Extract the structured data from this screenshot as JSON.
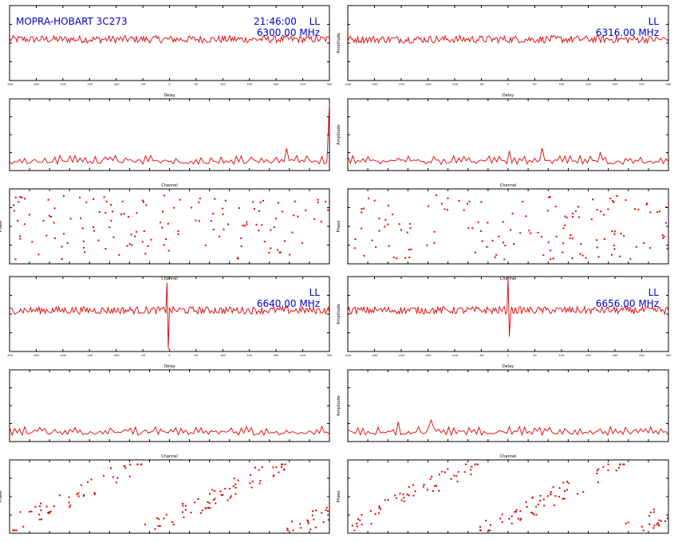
{
  "header": {
    "source": "MOPRA-HOBART 3C273",
    "time": "21:46:00",
    "pol": "LL"
  },
  "axis_labels": {
    "delay": "Delay",
    "channel": "Channel",
    "amplitude": "Amplitude",
    "phase": "Phase"
  },
  "colors": {
    "trace": "#dd0000",
    "annotation": "#0000cc"
  },
  "chart_data": [
    {
      "band": "6300.00 MHz",
      "freq_label": "6300.00 MHz",
      "pol_label": "LL",
      "time_label": "21:46:00",
      "delay": {
        "type": "line",
        "xlabel": "Delay",
        "ylabel": "",
        "x_ticks": [
          -300,
          -250,
          -200,
          -150,
          -100,
          -50,
          0,
          50,
          100,
          150,
          200,
          250,
          300
        ],
        "baseline": 0.55,
        "noise": 0.05,
        "spike": null
      },
      "amplitude": {
        "type": "line",
        "xlabel": "Channel",
        "ylabel": "",
        "n_channels": 128,
        "ylim": [
          0,
          8
        ],
        "peaks": [
          {
            "channel": 110,
            "height": 2.5
          },
          {
            "channel": 127,
            "height": 7.5
          }
        ]
      },
      "phase": {
        "type": "scatter",
        "xlabel": "Channel",
        "ylabel": "Phase",
        "ylim": [
          -180,
          180
        ],
        "pattern": "random"
      }
    },
    {
      "band": "6316.00 MHz",
      "freq_label": "6316.00 MHz",
      "pol_label": "LL",
      "time_label": "",
      "delay": {
        "type": "line",
        "xlabel": "Delay",
        "ylabel": "Amplitude",
        "x_ticks": [
          -300,
          -250,
          -200,
          -150,
          -100,
          -50,
          0,
          50,
          100,
          150,
          200,
          250,
          300
        ],
        "baseline": 0.55,
        "noise": 0.05,
        "spike": null
      },
      "amplitude": {
        "type": "line",
        "xlabel": "Channel",
        "ylabel": "Amplitude",
        "n_channels": 128,
        "ylim": [
          0,
          8
        ],
        "peaks": [
          {
            "channel": 64,
            "height": 2.2
          },
          {
            "channel": 77,
            "height": 2.5
          },
          {
            "channel": 100,
            "height": 2.0
          }
        ]
      },
      "phase": {
        "type": "scatter",
        "xlabel": "Channel",
        "ylabel": "Phase",
        "ylim": [
          -180,
          180
        ],
        "pattern": "random"
      }
    },
    {
      "band": "6640.00 MHz",
      "freq_label": "6640.00 MHz",
      "pol_label": "LL",
      "time_label": "",
      "delay": {
        "type": "line",
        "xlabel": "Delay",
        "ylabel": "",
        "x_ticks": [
          -300,
          -250,
          -200,
          -150,
          -100,
          -50,
          0,
          50,
          100,
          150,
          200,
          250,
          300
        ],
        "baseline": 0.55,
        "noise": 0.05,
        "spike": {
          "x": -5,
          "up": 0.92,
          "down": 0.03
        }
      },
      "amplitude": {
        "type": "line",
        "xlabel": "Channel",
        "ylabel": "",
        "n_channels": 128,
        "ylim": [
          0,
          8
        ],
        "peaks": []
      },
      "phase": {
        "type": "scatter",
        "xlabel": "Channel",
        "ylabel": "Phase",
        "ylim": [
          -180,
          180
        ],
        "pattern": "wrap"
      }
    },
    {
      "band": "6656.00 MHz",
      "freq_label": "6656.00 MHz",
      "pol_label": "LL",
      "time_label": "",
      "delay": {
        "type": "line",
        "xlabel": "Delay",
        "ylabel": "Amplitude",
        "x_ticks": [
          -300,
          -250,
          -200,
          -150,
          -100,
          -50,
          0,
          50,
          100,
          150,
          200,
          250,
          300
        ],
        "baseline": 0.55,
        "noise": 0.05,
        "spike": {
          "x": 0,
          "up": 0.98,
          "down": 0.2
        }
      },
      "amplitude": {
        "type": "line",
        "xlabel": "Channel",
        "ylabel": "Amplitude",
        "n_channels": 128,
        "ylim": [
          0,
          8
        ],
        "peaks": [
          {
            "channel": 20,
            "height": 2.2
          },
          {
            "channel": 33,
            "height": 2.4
          }
        ]
      },
      "phase": {
        "type": "scatter",
        "xlabel": "Channel",
        "ylabel": "Phase",
        "ylim": [
          -180,
          180
        ],
        "pattern": "wrap"
      }
    }
  ]
}
